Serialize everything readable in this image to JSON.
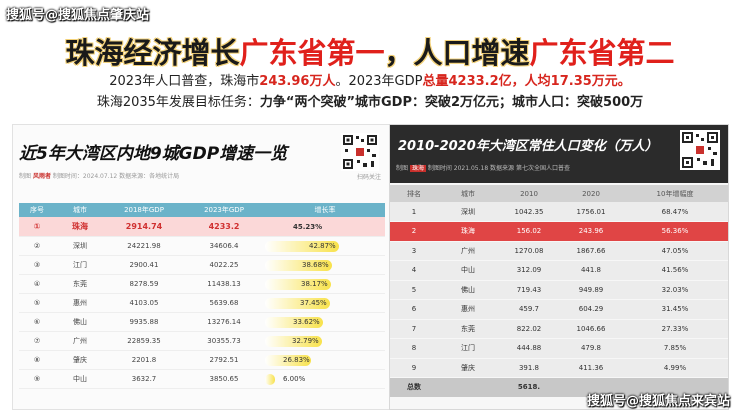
{
  "watermark_top": "搜狐号@搜狐焦点肇庆站",
  "watermark_bottom": "搜狐号@搜狐焦点来宾站",
  "headline": {
    "p1": "珠海经济增长",
    "p2": "广东省第一",
    "p3": "，人口增速",
    "p4": "广东省第二"
  },
  "line1": {
    "a": "2023年人口普查，珠海市",
    "b": "243.96万人",
    "c": "。2023年GDP",
    "d": "总量4233.2亿",
    "e": "，",
    "f": "人均17.35万元。"
  },
  "line2": {
    "a": "珠海2035年发展目标任务：",
    "b": "力争“两个突破”城市GDP：突破2万亿元；城市人口：突破500万"
  },
  "left": {
    "title": "近5年大湾区内地9城GDP增速一览",
    "meta_label": "制图",
    "meta_brand": "风雨者",
    "meta_rest": "  制图时间：2024.07.12   数据来源：各地统计局",
    "qr_caption": "扫码关注",
    "headers": [
      "序号",
      "城市",
      "2018年GDP",
      "2023年GDP",
      "增长率"
    ],
    "rows": [
      {
        "no": "①",
        "city": "珠海",
        "g2018": "2914.74",
        "g2023": "4233.2",
        "rate": "45.23%",
        "pct": 45.23
      },
      {
        "no": "②",
        "city": "深圳",
        "g2018": "24221.98",
        "g2023": "34606.4",
        "rate": "42.87%",
        "pct": 42.87
      },
      {
        "no": "③",
        "city": "江门",
        "g2018": "2900.41",
        "g2023": "4022.25",
        "rate": "38.68%",
        "pct": 38.68
      },
      {
        "no": "④",
        "city": "东莞",
        "g2018": "8278.59",
        "g2023": "11438.13",
        "rate": "38.17%",
        "pct": 38.17
      },
      {
        "no": "⑤",
        "city": "惠州",
        "g2018": "4103.05",
        "g2023": "5639.68",
        "rate": "37.45%",
        "pct": 37.45
      },
      {
        "no": "⑥",
        "city": "佛山",
        "g2018": "9935.88",
        "g2023": "13276.14",
        "rate": "33.62%",
        "pct": 33.62
      },
      {
        "no": "⑦",
        "city": "广州",
        "g2018": "22859.35",
        "g2023": "30355.73",
        "rate": "32.79%",
        "pct": 32.79
      },
      {
        "no": "⑧",
        "city": "肇庆",
        "g2018": "2201.8",
        "g2023": "2792.51",
        "rate": "26.83%",
        "pct": 26.83
      },
      {
        "no": "⑨",
        "city": "中山",
        "g2018": "3632.7",
        "g2023": "3850.65",
        "rate": "6.00%",
        "pct": 6.0
      }
    ]
  },
  "right": {
    "title": "2010-2020年大湾区常住人口变化（万人）",
    "meta_label": "制图",
    "meta_brand": "珠海",
    "meta_rest": "  制图时间  2021.05.18   数据来源  第七次全国人口普查",
    "headers": [
      "排名",
      "城市",
      "2010",
      "2020",
      "10年增幅度"
    ],
    "rows": [
      {
        "rank": "1",
        "city": "深圳",
        "p2010": "1042.35",
        "p2020": "1756.01",
        "growth": "68.47%"
      },
      {
        "rank": "2",
        "city": "珠海",
        "p2010": "156.02",
        "p2020": "243.96",
        "growth": "56.36%"
      },
      {
        "rank": "3",
        "city": "广州",
        "p2010": "1270.08",
        "p2020": "1867.66",
        "growth": "47.05%"
      },
      {
        "rank": "4",
        "city": "中山",
        "p2010": "312.09",
        "p2020": "441.8",
        "growth": "41.56%"
      },
      {
        "rank": "5",
        "city": "佛山",
        "p2010": "719.43",
        "p2020": "949.89",
        "growth": "32.03%"
      },
      {
        "rank": "6",
        "city": "惠州",
        "p2010": "459.7",
        "p2020": "604.29",
        "growth": "31.45%"
      },
      {
        "rank": "7",
        "city": "东莞",
        "p2010": "822.02",
        "p2020": "1046.66",
        "growth": "27.33%"
      },
      {
        "rank": "8",
        "city": "江门",
        "p2010": "444.88",
        "p2020": "479.8",
        "growth": "7.85%"
      },
      {
        "rank": "9",
        "city": "肇庆",
        "p2010": "391.8",
        "p2020": "411.36",
        "growth": "4.99%"
      }
    ],
    "total_label": "总数",
    "total_value": "5618."
  },
  "colors": {
    "accent_red": "#e0201b",
    "header_teal": "#6bb3c9",
    "bar_yellow": "#f8e24b",
    "dark_header": "#2b2b2b"
  }
}
